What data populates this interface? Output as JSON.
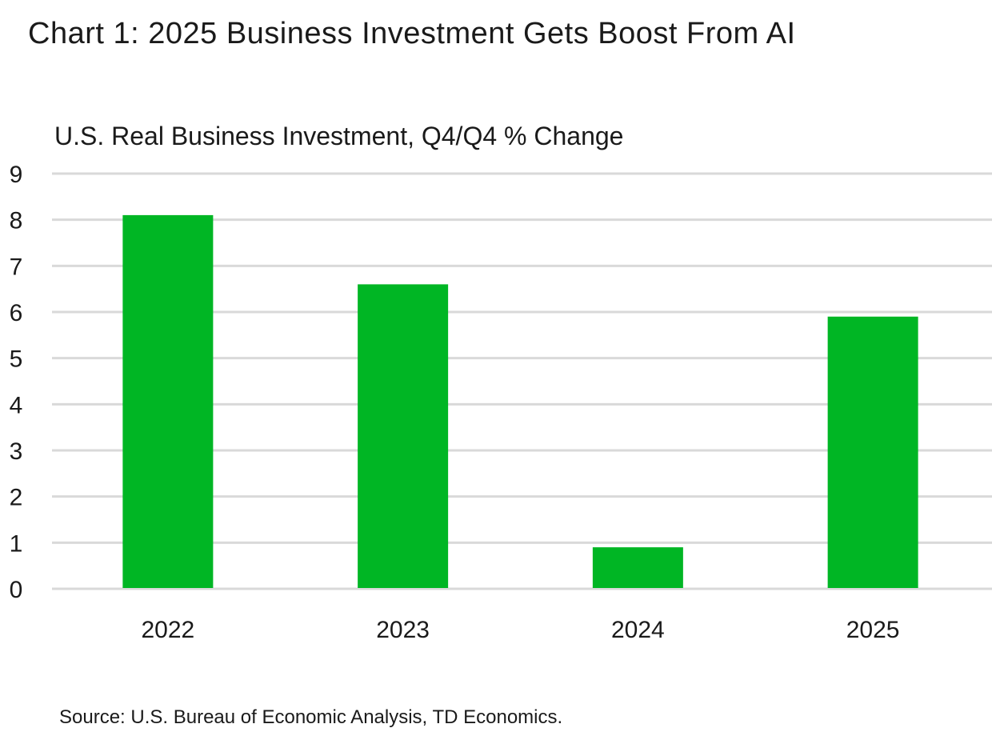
{
  "chart_data": {
    "type": "bar",
    "title": "Chart 1: 2025 Business Investment Gets Boost From AI",
    "subtitle": "U.S. Real Business Investment, Q4/Q4 % Change",
    "categories": [
      "2022",
      "2023",
      "2024",
      "2025"
    ],
    "values": [
      8.1,
      6.6,
      0.9,
      5.9
    ],
    "ylim": [
      0,
      9
    ],
    "yticks": [
      "0",
      "1",
      "2",
      "3",
      "4",
      "5",
      "6",
      "7",
      "8",
      "9"
    ],
    "grid": true,
    "bar_color": "#00b624",
    "source": "Source: U.S. Bureau of Economic Analysis, TD Economics."
  }
}
